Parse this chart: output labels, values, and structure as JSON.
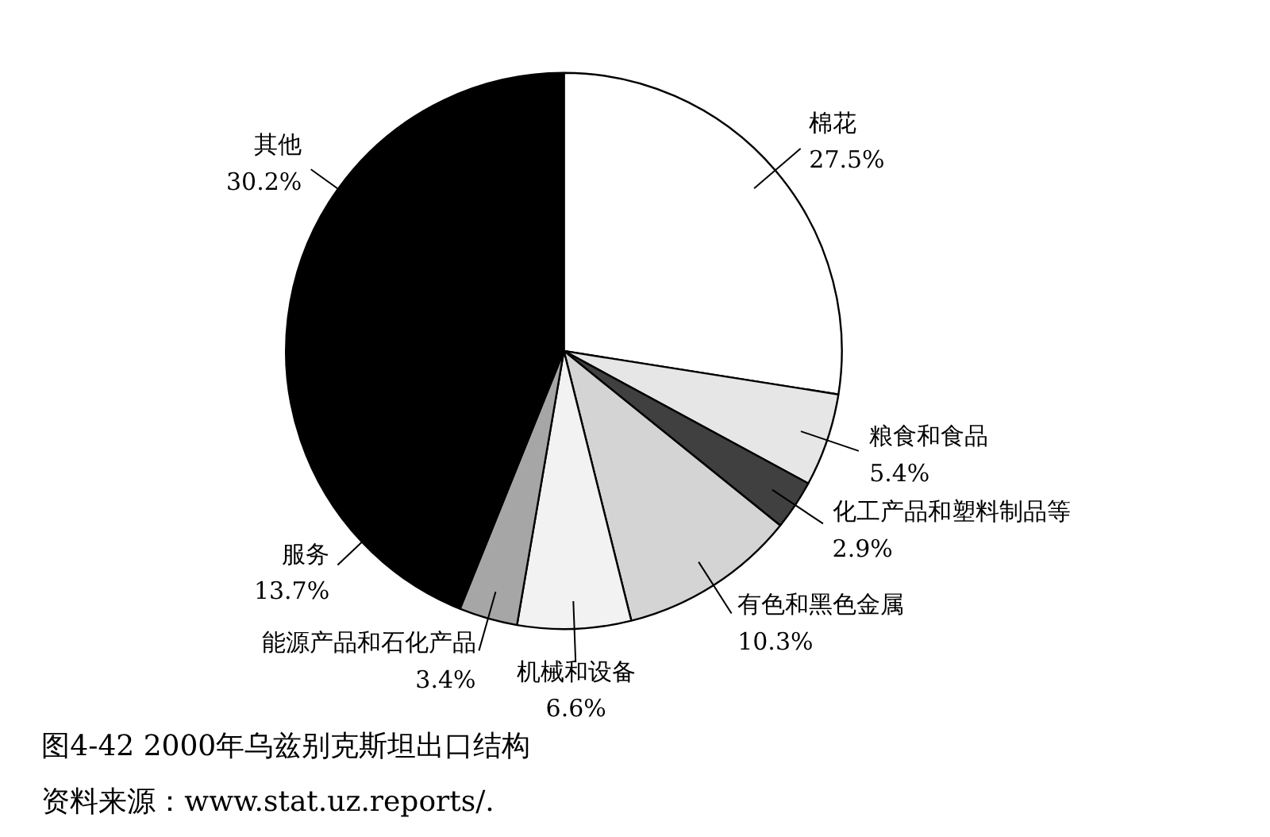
{
  "chart_data": {
    "type": "pie",
    "title": "图4-42  2000年乌兹别克斯坦出口结构",
    "categories": [
      "棉花",
      "粮食和食品",
      "化工产品和塑料制品等",
      "有色和黑色金属",
      "机械和设备",
      "能源产品和石化产品",
      "服务",
      "其他"
    ],
    "values": [
      27.5,
      5.4,
      2.9,
      10.3,
      6.6,
      3.4,
      13.7,
      30.2
    ],
    "colors": [
      "#ffffff",
      "#e6e6e6",
      "#404040",
      "#d4d4d4",
      "#f2f2f2",
      "#a6a6a6",
      "#000000",
      "#000000"
    ],
    "value_labels": [
      "27.5%",
      "5.4%",
      "2.9%",
      "10.3%",
      "6.6%",
      "3.4%",
      "13.7%",
      "30.2%"
    ],
    "annotations": [
      "资料来源：www.stat.uz.reports/."
    ]
  }
}
